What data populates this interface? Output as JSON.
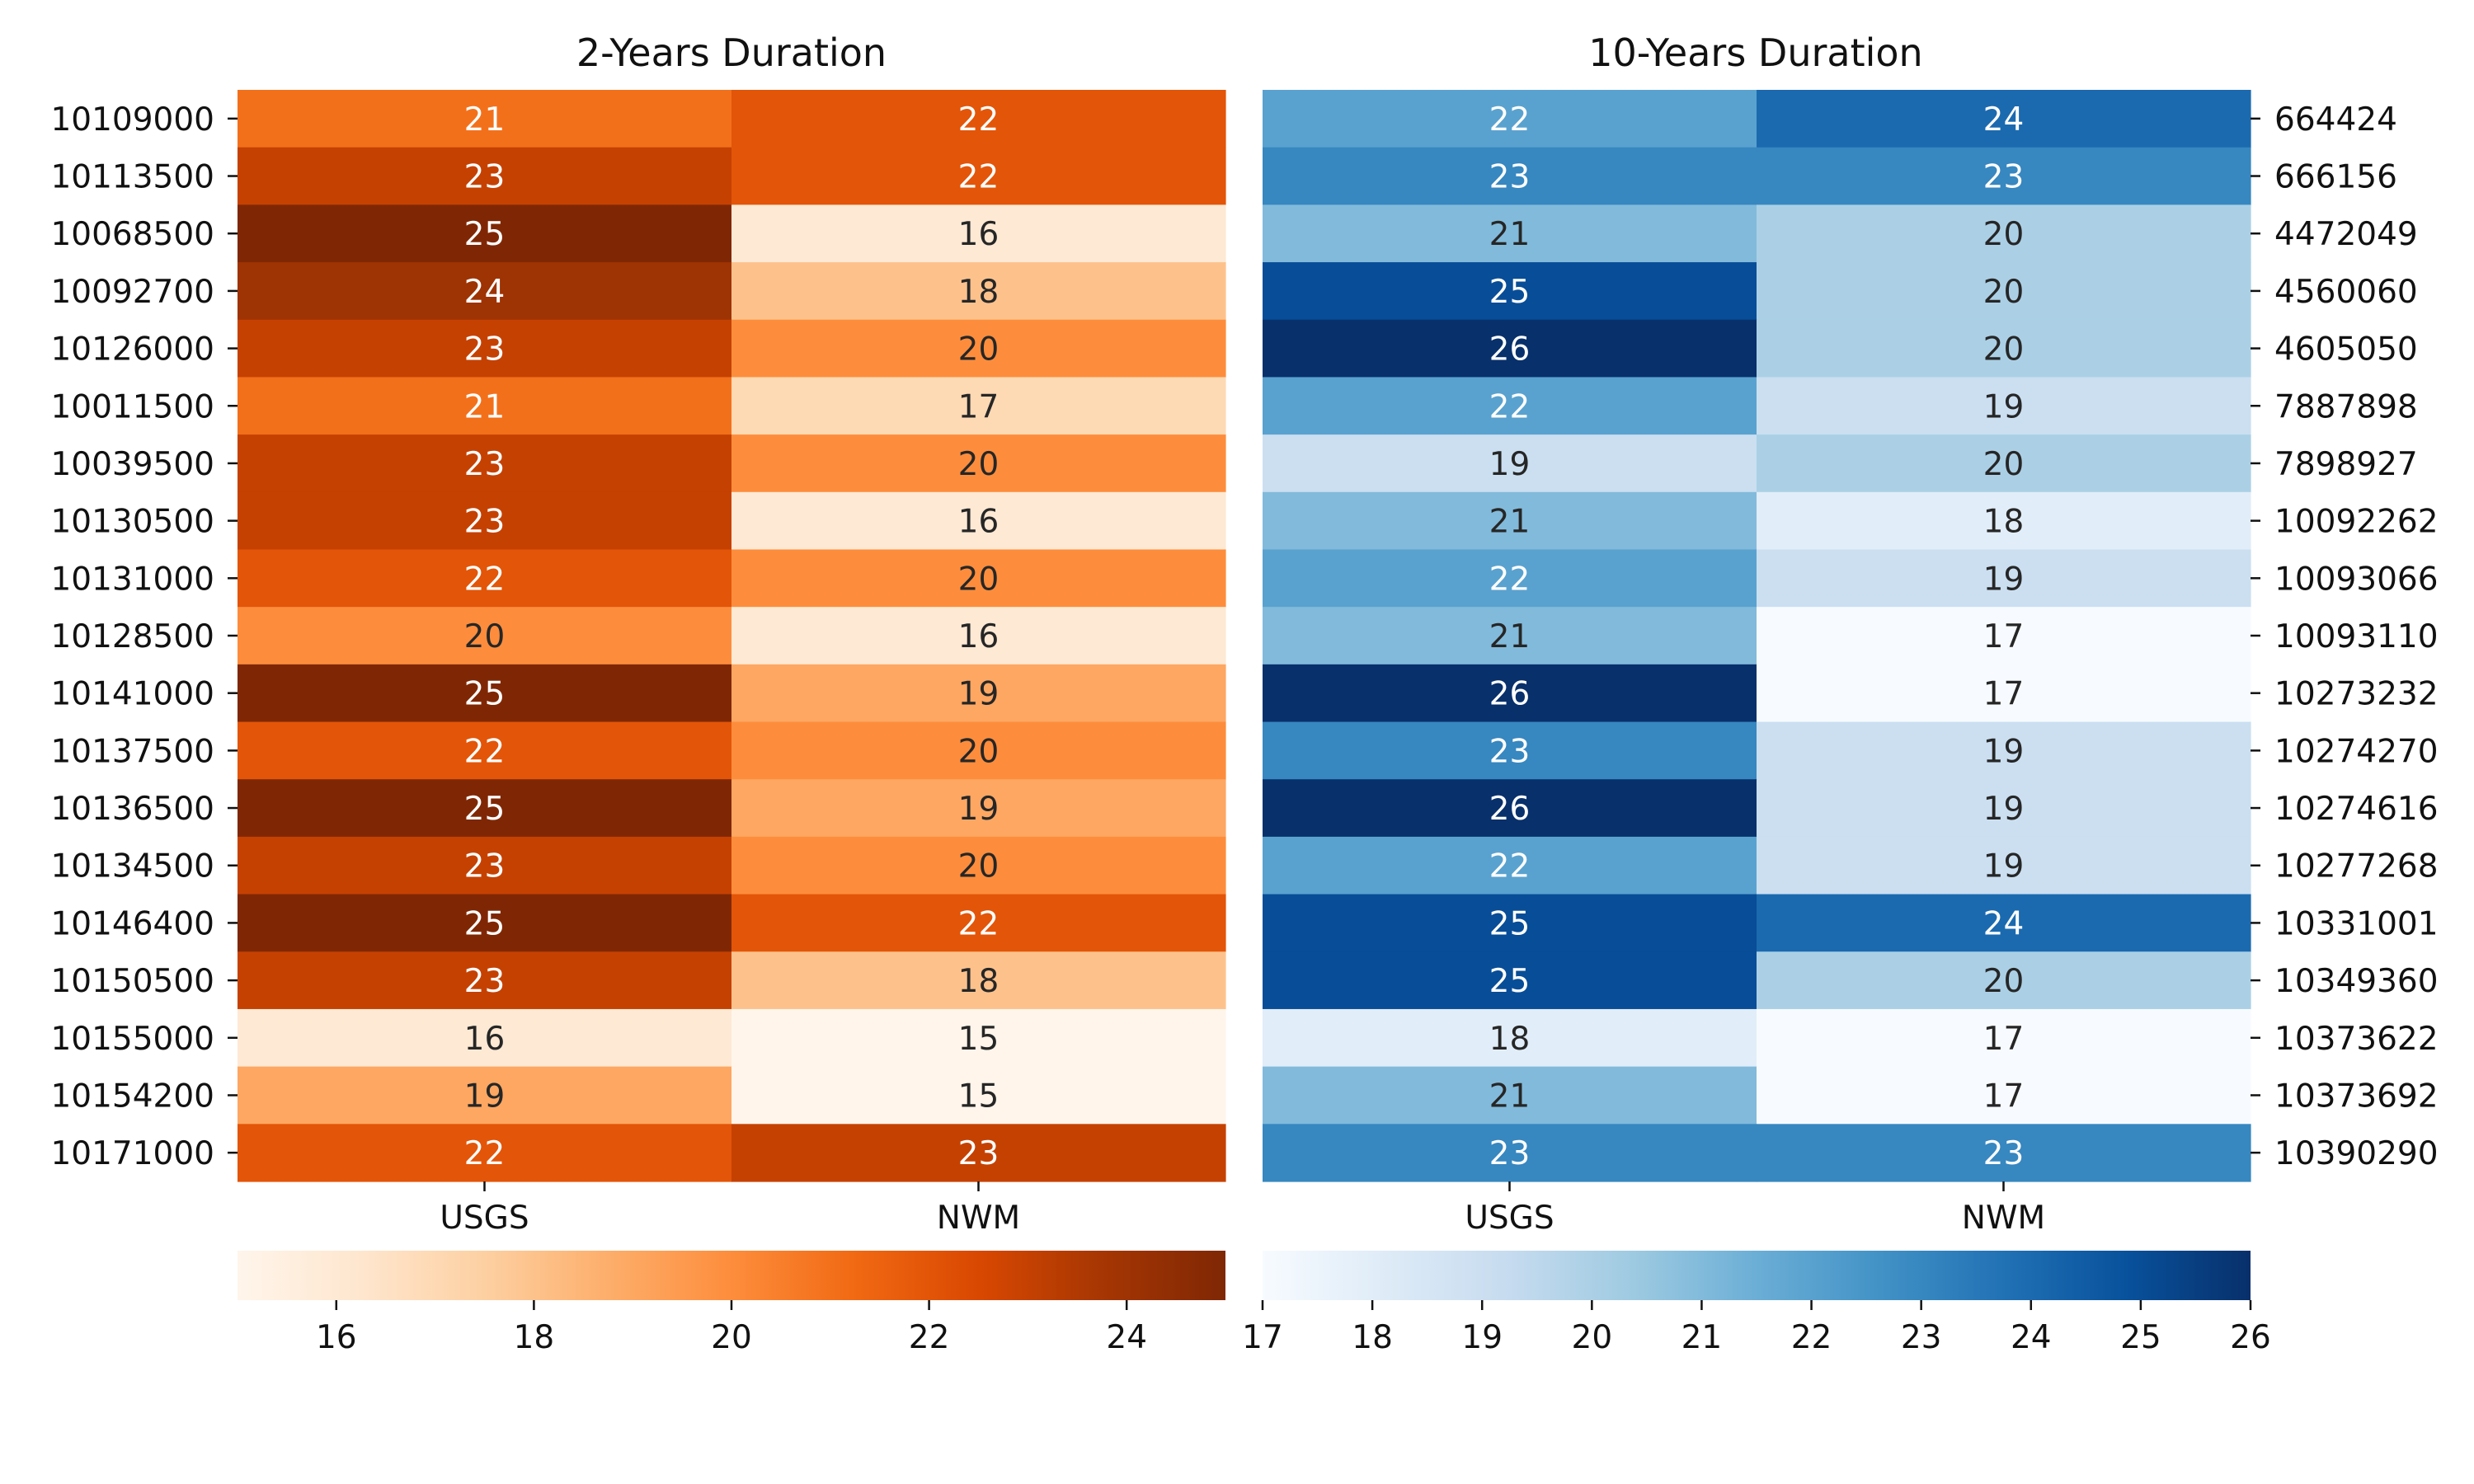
{
  "chart_data": [
    {
      "type": "heatmap",
      "title": "2-Years Duration",
      "columns": [
        "USGS",
        "NWM"
      ],
      "rows": [
        "10109000",
        "10113500",
        "10068500",
        "10092700",
        "10126000",
        "10011500",
        "10039500",
        "10130500",
        "10131000",
        "10128500",
        "10141000",
        "10137500",
        "10136500",
        "10134500",
        "10146400",
        "10150500",
        "10155000",
        "10154200",
        "10171000"
      ],
      "values": [
        [
          21,
          22
        ],
        [
          23,
          22
        ],
        [
          25,
          16
        ],
        [
          24,
          18
        ],
        [
          23,
          20
        ],
        [
          21,
          17
        ],
        [
          23,
          20
        ],
        [
          23,
          16
        ],
        [
          22,
          20
        ],
        [
          20,
          16
        ],
        [
          25,
          19
        ],
        [
          22,
          20
        ],
        [
          25,
          19
        ],
        [
          23,
          20
        ],
        [
          25,
          22
        ],
        [
          23,
          18
        ],
        [
          16,
          15
        ],
        [
          19,
          15
        ],
        [
          22,
          23
        ]
      ],
      "colormap": "Oranges",
      "vmin": 15,
      "vmax": 25,
      "colorbar_ticks": [
        16,
        18,
        20,
        22,
        24
      ],
      "row_label_side": "left"
    },
    {
      "type": "heatmap",
      "title": "10-Years Duration",
      "columns": [
        "USGS",
        "NWM"
      ],
      "rows": [
        "664424",
        "666156",
        "4472049",
        "4560060",
        "4605050",
        "7887898",
        "7898927",
        "10092262",
        "10093066",
        "10093110",
        "10273232",
        "10274270",
        "10274616",
        "10277268",
        "10331001",
        "10349360",
        "10373622",
        "10373692",
        "10390290"
      ],
      "values": [
        [
          22,
          24
        ],
        [
          23,
          23
        ],
        [
          21,
          20
        ],
        [
          25,
          20
        ],
        [
          26,
          20
        ],
        [
          22,
          19
        ],
        [
          19,
          20
        ],
        [
          21,
          18
        ],
        [
          22,
          19
        ],
        [
          21,
          17
        ],
        [
          26,
          17
        ],
        [
          23,
          19
        ],
        [
          26,
          19
        ],
        [
          22,
          19
        ],
        [
          25,
          24
        ],
        [
          25,
          20
        ],
        [
          18,
          17
        ],
        [
          21,
          17
        ],
        [
          23,
          23
        ]
      ],
      "colormap": "Blues",
      "vmin": 17,
      "vmax": 26,
      "colorbar_ticks": [
        17,
        18,
        19,
        20,
        21,
        22,
        23,
        24,
        25,
        26
      ],
      "row_label_side": "right"
    }
  ],
  "colors": {
    "Oranges": [
      "#fff5eb",
      "#fee6ce",
      "#fdd0a2",
      "#fdae6b",
      "#fd8d3c",
      "#f16913",
      "#d94801",
      "#a63603",
      "#7f2704"
    ],
    "Blues": [
      "#f7fbff",
      "#deebf7",
      "#c6dbef",
      "#9ecae1",
      "#6baed6",
      "#4292c6",
      "#2171b5",
      "#08519c",
      "#08306b"
    ]
  }
}
